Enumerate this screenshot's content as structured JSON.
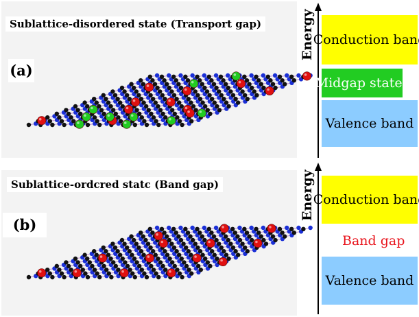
{
  "panel_a": {
    "title": "Sublattice-disordered state (Transport gap)",
    "label": "(a)",
    "axis_label": "Energy",
    "bands": {
      "conduction": "Conduction band",
      "midgap": "Midgap states",
      "valence": "Valence band"
    }
  },
  "panel_b": {
    "title": "Sublattice-ordcred statc (Band gap)",
    "label": "(b)",
    "axis_label": "Energy",
    "bands": {
      "conduction": "Conduction band",
      "gap": "Band gap",
      "valence": "Valence band"
    }
  },
  "colors": {
    "conduction": "#ffff00",
    "midgap": "#22cc22",
    "valence": "#8cccff",
    "gap_text": "#e8141c",
    "atom_a": "#111111",
    "atom_b": "#1a2fd6",
    "impurity_red": "#e01010",
    "impurity_green": "#22cc22",
    "bond": "#c9a0d8"
  }
}
